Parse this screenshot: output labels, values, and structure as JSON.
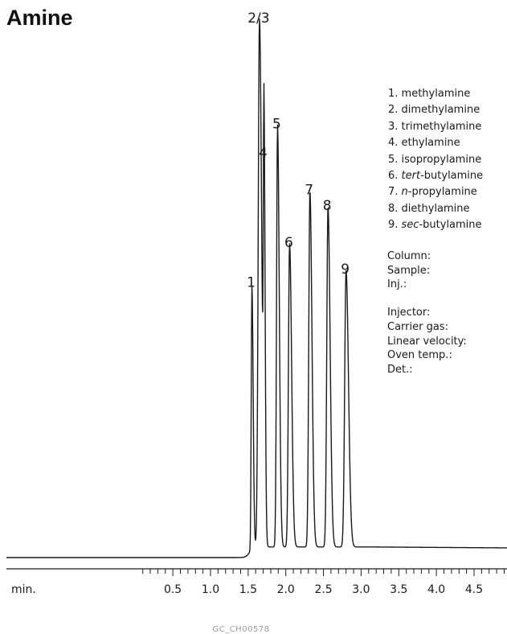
{
  "title": "Amine",
  "chart_data": {
    "type": "line",
    "title": "Amine",
    "xlabel": "min.",
    "ylabel": "",
    "xlim": [
      0.1,
      4.9
    ],
    "x_ticks": [
      "0.5",
      "1.0",
      "1.5",
      "2.0",
      "2.5",
      "3.0",
      "3.5",
      "4.0",
      "4.5"
    ],
    "grid": false,
    "baseline_level": 0.02,
    "peaks": [
      {
        "label": "1",
        "rt": 1.55,
        "height": 0.5,
        "width": 0.012
      },
      {
        "label": "2/3",
        "rt": 1.65,
        "height": 1.0,
        "width": 0.022
      },
      {
        "label": "4",
        "rt": 1.71,
        "height": 0.745,
        "width": 0.011
      },
      {
        "label": "5",
        "rt": 1.89,
        "height": 0.8,
        "width": 0.017
      },
      {
        "label": "6",
        "rt": 2.05,
        "height": 0.575,
        "width": 0.02
      },
      {
        "label": "7",
        "rt": 2.32,
        "height": 0.675,
        "width": 0.02
      },
      {
        "label": "8",
        "rt": 2.56,
        "height": 0.645,
        "width": 0.021
      },
      {
        "label": "9",
        "rt": 2.8,
        "height": 0.525,
        "width": 0.024
      }
    ]
  },
  "legend": [
    {
      "num": "1.",
      "pre": "",
      "ital": "",
      "post": "methylamine"
    },
    {
      "num": "2.",
      "pre": "",
      "ital": "",
      "post": "dimethylamine"
    },
    {
      "num": "3.",
      "pre": "",
      "ital": "",
      "post": "trimethylamine"
    },
    {
      "num": "4.",
      "pre": "",
      "ital": "",
      "post": "ethylamine"
    },
    {
      "num": "5.",
      "pre": "",
      "ital": "",
      "post": "isopropylamine"
    },
    {
      "num": "6.",
      "pre": "",
      "ital": "tert",
      "post": "-butylamine"
    },
    {
      "num": "7.",
      "pre": "",
      "ital": "n",
      "post": "-propylamine"
    },
    {
      "num": "8.",
      "pre": "",
      "ital": "",
      "post": "diethylamine"
    },
    {
      "num": "9.",
      "pre": "",
      "ital": "sec",
      "post": "-butylamine"
    }
  ],
  "conditions": {
    "column": "Column:",
    "sample": "Sample:",
    "inj": "Inj.:",
    "injector": "Injector:",
    "carrier_gas": "Carrier gas:",
    "linear_velocity": "Linear velocity:",
    "oven_temp": "Oven temp.:",
    "det": "Det.:"
  },
  "footer_code": "GC_CH00578",
  "colors": {
    "trace": "#1a1a1a",
    "axis": "#1a1a1a",
    "footer": "#9a9a9a"
  }
}
